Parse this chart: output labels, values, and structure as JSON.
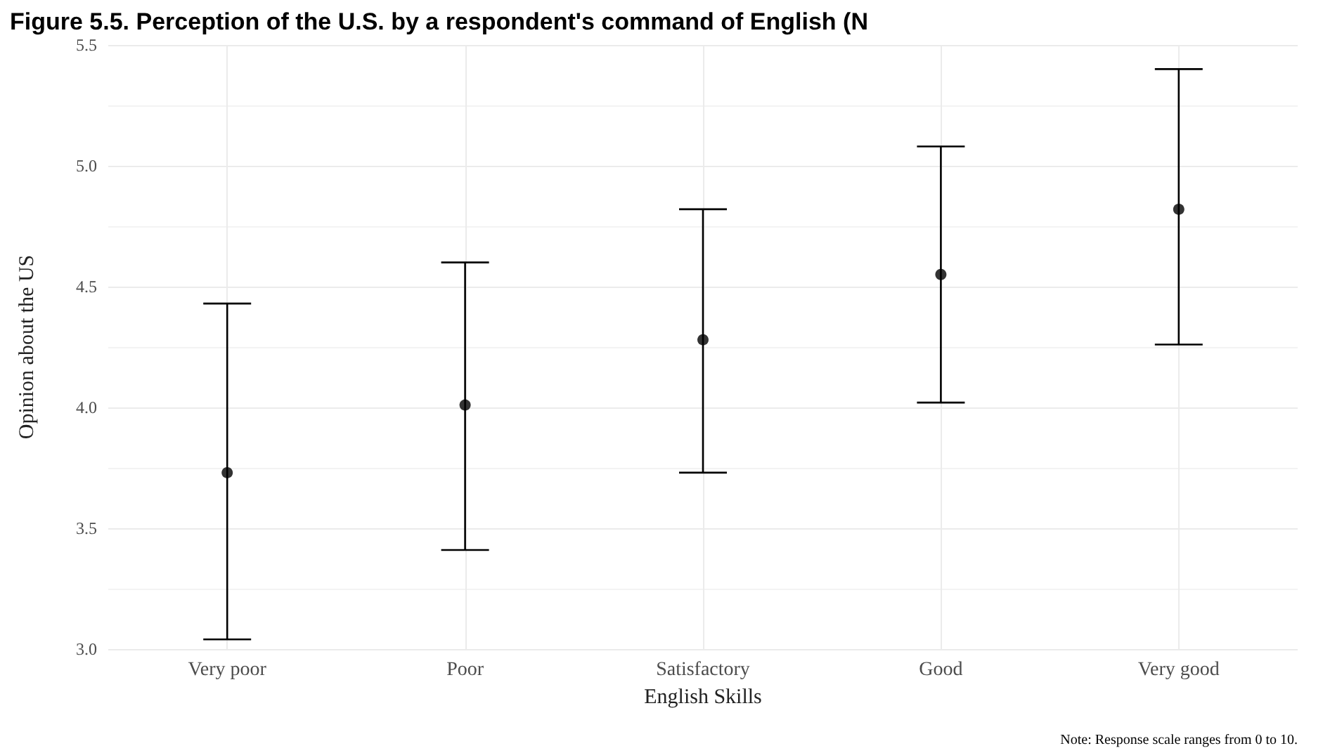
{
  "chart_data": {
    "type": "scatter",
    "title": "Figure 5.5. Perception of the U.S. by a respondent's command of English (N",
    "xlabel": "English Skills",
    "ylabel": "Opinion about the US",
    "annotations": [
      "Note: Response scale ranges from 0 to 10."
    ],
    "categories": [
      "Very poor",
      "Poor",
      "Satisfactory",
      "Good",
      "Very good"
    ],
    "series": [
      {
        "color": "#000000",
        "values": [
          3.73,
          4.01,
          4.28,
          4.55,
          4.82
        ],
        "errors": [
          [
            3.04,
            4.43
          ],
          [
            3.41,
            4.6
          ],
          [
            3.73,
            4.82
          ],
          [
            4.02,
            5.08
          ],
          [
            4.26,
            5.4
          ]
        ]
      }
    ],
    "ylim": [
      3.0,
      5.5
    ],
    "yticks": [
      {
        "value": 3,
        "label": "3.0"
      },
      {
        "value": 3.5,
        "label": "3.5"
      },
      {
        "value": 4,
        "label": "4.0"
      },
      {
        "value": 4.5,
        "label": "4.5"
      },
      {
        "value": 5,
        "label": "5.0"
      },
      {
        "value": 5.5,
        "label": "5.5"
      }
    ],
    "grid": true,
    "marker": "circle"
  }
}
